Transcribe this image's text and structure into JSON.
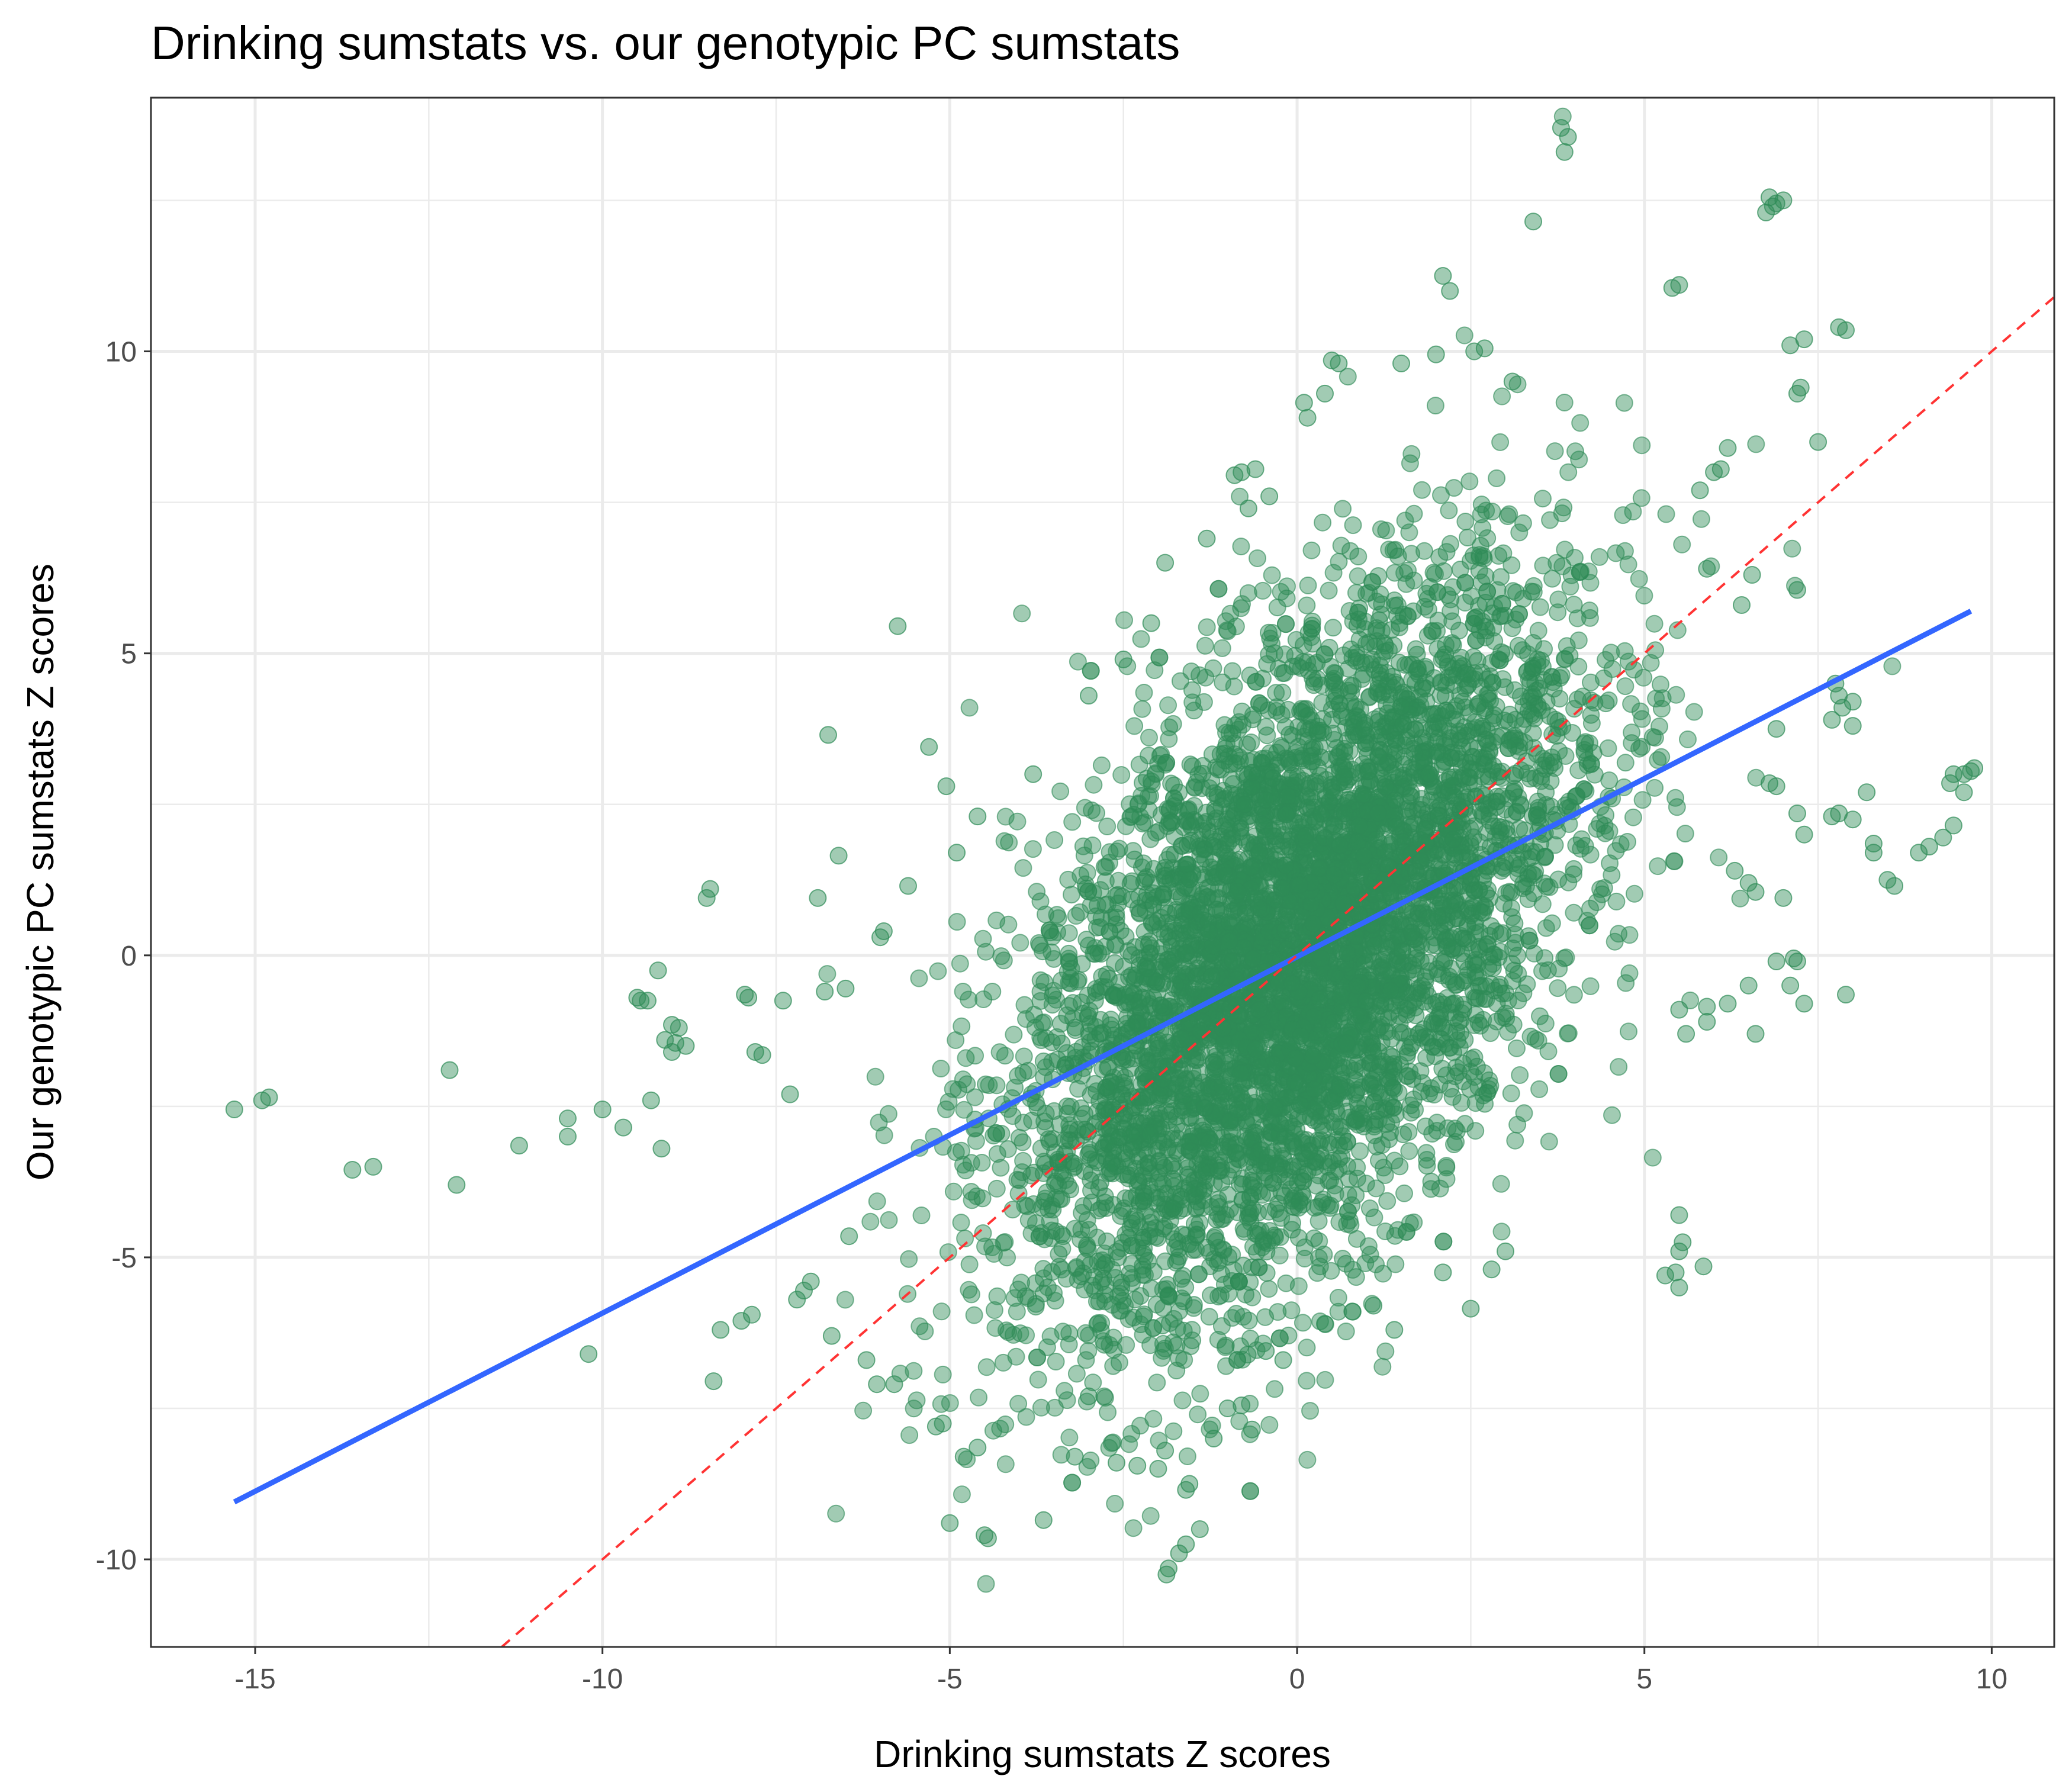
{
  "chart_data": {
    "type": "scatter",
    "title": "Drinking sumstats vs. our genotypic PC sumstats",
    "xlabel": "Drinking sumstats Z scores",
    "ylabel": "Our genotypic PC sumstats Z scores",
    "xlim": [
      -16.5,
      10.9
    ],
    "ylim": [
      -11.45,
      14.2
    ],
    "x_ticks": [
      -15,
      -10,
      -5,
      0,
      5,
      10
    ],
    "x_tick_labels": [
      "-15",
      "-10",
      "-5",
      "0",
      "5",
      "10"
    ],
    "y_ticks": [
      -10,
      -5,
      0,
      5,
      10
    ],
    "y_tick_labels": [
      "-10",
      "-5",
      "0",
      "5",
      "10"
    ],
    "grid": true,
    "point_color": "#2e8b57",
    "point_opacity": 0.45,
    "core_cloud": {
      "description_x_center": 0.0,
      "description_y_center": 0.0,
      "sd_x": 2.0,
      "sd_y": 3.0,
      "correlation": 0.55,
      "approx_count": 6000
    },
    "outlier_points": [
      [
        -15.3,
        -2.55
      ],
      [
        -14.8,
        -2.35
      ],
      [
        -14.9,
        -2.4
      ],
      [
        -13.6,
        -3.55
      ],
      [
        -13.3,
        -3.5
      ],
      [
        -12.2,
        -1.9
      ],
      [
        -12.1,
        -3.8
      ],
      [
        -11.2,
        -3.15
      ],
      [
        -10.5,
        -2.7
      ],
      [
        -10.5,
        -3.0
      ],
      [
        -10.2,
        -6.6
      ],
      [
        -10.0,
        -2.55
      ],
      [
        -9.7,
        -2.85
      ],
      [
        -9.45,
        -0.75
      ],
      [
        -9.5,
        -0.7
      ],
      [
        -9.35,
        -0.75
      ],
      [
        -9.3,
        -2.4
      ],
      [
        -9.2,
        -0.25
      ],
      [
        -9.15,
        -3.2
      ],
      [
        -9.1,
        -1.4
      ],
      [
        -9.0,
        -1.15
      ],
      [
        -9.0,
        -1.6
      ],
      [
        -8.95,
        -1.45
      ],
      [
        -8.9,
        -1.2
      ],
      [
        -8.8,
        -1.5
      ],
      [
        -8.5,
        0.95
      ],
      [
        -8.45,
        1.1
      ],
      [
        -8.4,
        -7.05
      ],
      [
        -8.3,
        -6.2
      ],
      [
        -8.0,
        -6.05
      ],
      [
        -7.95,
        -0.65
      ],
      [
        -7.9,
        -0.7
      ],
      [
        -7.85,
        -5.95
      ],
      [
        -7.8,
        -1.6
      ],
      [
        -7.7,
        -1.65
      ],
      [
        -7.4,
        -0.75
      ],
      [
        -7.3,
        -2.3
      ],
      [
        -7.2,
        -5.7
      ],
      [
        -7.1,
        -5.55
      ],
      [
        -7.0,
        -5.4
      ],
      [
        -6.9,
        0.95
      ],
      [
        -6.8,
        -0.6
      ],
      [
        -6.75,
        3.65
      ],
      [
        -6.7,
        -6.3
      ],
      [
        -6.6,
        1.65
      ],
      [
        -6.5,
        -0.55
      ],
      [
        -6.45,
        -4.65
      ],
      [
        -6.2,
        -6.7
      ],
      [
        -6.05,
        -7.1
      ],
      [
        -6.0,
        0.3
      ],
      [
        -5.95,
        0.4
      ],
      [
        -5.8,
        -7.1
      ],
      [
        -5.75,
        5.45
      ],
      [
        -5.6,
        1.15
      ],
      [
        -5.3,
        3.45
      ],
      [
        -5.05,
        2.8
      ],
      [
        -5.1,
        -7.75
      ],
      [
        -5.2,
        -7.8
      ],
      [
        -4.8,
        -8.3
      ],
      [
        -4.6,
        -8.15
      ],
      [
        -4.5,
        -9.6
      ],
      [
        -4.45,
        -9.65
      ],
      [
        -5.0,
        -9.4
      ],
      [
        -3.65,
        -9.35
      ],
      [
        -3.2,
        -8.3
      ],
      [
        -3.0,
        -7.3
      ],
      [
        -2.6,
        -8.4
      ],
      [
        -2.3,
        -8.45
      ],
      [
        -2.0,
        -8.5
      ],
      [
        -1.9,
        -8.2
      ],
      [
        -1.85,
        -10.15
      ],
      [
        -1.88,
        -10.25
      ],
      [
        -1.7,
        -9.9
      ],
      [
        -1.6,
        -9.75
      ],
      [
        -1.4,
        -9.5
      ],
      [
        -1.6,
        -8.85
      ],
      [
        -1.55,
        -8.75
      ],
      [
        -1.2,
        -8.0
      ],
      [
        -1.0,
        -7.5
      ],
      [
        -0.8,
        -7.45
      ],
      [
        -0.65,
        -7.85
      ],
      [
        -0.45,
        -6.55
      ],
      [
        -0.2,
        -6.7
      ],
      [
        0.4,
        -6.1
      ],
      [
        0.8,
        -5.9
      ],
      [
        1.1,
        -5.8
      ],
      [
        1.4,
        -6.2
      ],
      [
        2.1,
        -5.25
      ],
      [
        2.5,
        -5.85
      ],
      [
        2.8,
        -5.2
      ],
      [
        3.0,
        -4.9
      ],
      [
        3.8,
        13.7
      ],
      [
        3.9,
        13.55
      ],
      [
        3.85,
        13.3
      ],
      [
        3.4,
        12.15
      ],
      [
        2.1,
        11.25
      ],
      [
        2.2,
        11.0
      ],
      [
        2.7,
        10.05
      ],
      [
        2.55,
        10.0
      ],
      [
        3.1,
        9.5
      ],
      [
        2.0,
        9.95
      ],
      [
        1.5,
        9.8
      ],
      [
        0.5,
        9.85
      ],
      [
        0.6,
        9.8
      ],
      [
        0.4,
        9.3
      ],
      [
        0.1,
        9.15
      ],
      [
        0.15,
        8.9
      ],
      [
        -0.6,
        8.05
      ],
      [
        -0.8,
        8.0
      ],
      [
        -0.9,
        7.95
      ],
      [
        -0.4,
        7.6
      ],
      [
        -0.7,
        7.4
      ],
      [
        -1.3,
        6.9
      ],
      [
        -1.9,
        6.5
      ],
      [
        -2.1,
        5.5
      ],
      [
        -2.5,
        4.9
      ],
      [
        -3.0,
        4.3
      ],
      [
        -3.8,
        3.0
      ],
      [
        -4.6,
        2.3
      ],
      [
        -4.9,
        1.7
      ],
      [
        5.4,
        11.05
      ],
      [
        5.5,
        11.1
      ],
      [
        6.8,
        12.55
      ],
      [
        6.9,
        12.45
      ],
      [
        7.0,
        12.5
      ],
      [
        6.75,
        12.3
      ],
      [
        6.85,
        12.4
      ],
      [
        7.1,
        10.1
      ],
      [
        7.3,
        10.2
      ],
      [
        7.8,
        10.4
      ],
      [
        7.9,
        10.35
      ],
      [
        7.2,
        9.3
      ],
      [
        7.25,
        9.4
      ],
      [
        7.5,
        8.5
      ],
      [
        6.2,
        8.4
      ],
      [
        6.1,
        8.05
      ],
      [
        6.0,
        8.0
      ],
      [
        5.8,
        7.7
      ],
      [
        5.9,
        6.4
      ],
      [
        6.55,
        6.3
      ],
      [
        7.2,
        6.05
      ],
      [
        6.4,
        5.8
      ],
      [
        7.8,
        4.3
      ],
      [
        7.85,
        4.1
      ],
      [
        8.0,
        4.2
      ],
      [
        7.7,
        3.9
      ],
      [
        7.75,
        4.5
      ],
      [
        8.0,
        3.8
      ],
      [
        6.9,
        3.75
      ],
      [
        6.8,
        2.85
      ],
      [
        6.9,
        2.8
      ],
      [
        7.2,
        2.35
      ],
      [
        7.3,
        2.0
      ],
      [
        7.7,
        2.3
      ],
      [
        7.8,
        2.35
      ],
      [
        8.0,
        2.25
      ],
      [
        8.2,
        2.7
      ],
      [
        8.3,
        1.85
      ],
      [
        8.5,
        1.25
      ],
      [
        8.6,
        1.15
      ],
      [
        8.3,
        1.7
      ],
      [
        8.95,
        1.7
      ],
      [
        9.1,
        1.8
      ],
      [
        9.3,
        1.95
      ],
      [
        9.45,
        2.15
      ],
      [
        9.45,
        3.0
      ],
      [
        9.6,
        3.0
      ],
      [
        9.7,
        3.05
      ],
      [
        9.75,
        3.1
      ],
      [
        9.4,
        2.85
      ],
      [
        9.6,
        2.7
      ],
      [
        7.0,
        0.95
      ],
      [
        6.5,
        1.2
      ],
      [
        6.6,
        1.05
      ],
      [
        6.3,
        1.4
      ],
      [
        7.15,
        -0.05
      ],
      [
        7.2,
        -0.1
      ],
      [
        7.1,
        -0.5
      ],
      [
        7.3,
        -0.8
      ],
      [
        6.9,
        -0.1
      ],
      [
        6.5,
        -0.5
      ],
      [
        7.9,
        -0.65
      ],
      [
        6.6,
        -1.3
      ],
      [
        6.2,
        -0.8
      ],
      [
        5.9,
        -0.85
      ],
      [
        5.9,
        -1.1
      ],
      [
        5.5,
        -0.9
      ],
      [
        5.6,
        -1.3
      ],
      [
        5.5,
        -4.3
      ],
      [
        5.55,
        -4.75
      ],
      [
        5.5,
        -4.9
      ],
      [
        5.45,
        -5.25
      ],
      [
        5.5,
        -5.5
      ],
      [
        5.85,
        -5.15
      ],
      [
        5.3,
        -5.3
      ]
    ],
    "regression_line": {
      "color": "#3366ff",
      "points": [
        [
          -15.3,
          -9.05
        ],
        [
          9.7,
          5.7
        ]
      ]
    },
    "identity_line": {
      "color": "#ff3333",
      "style": "dashed",
      "slope": 1,
      "intercept": 0
    }
  }
}
